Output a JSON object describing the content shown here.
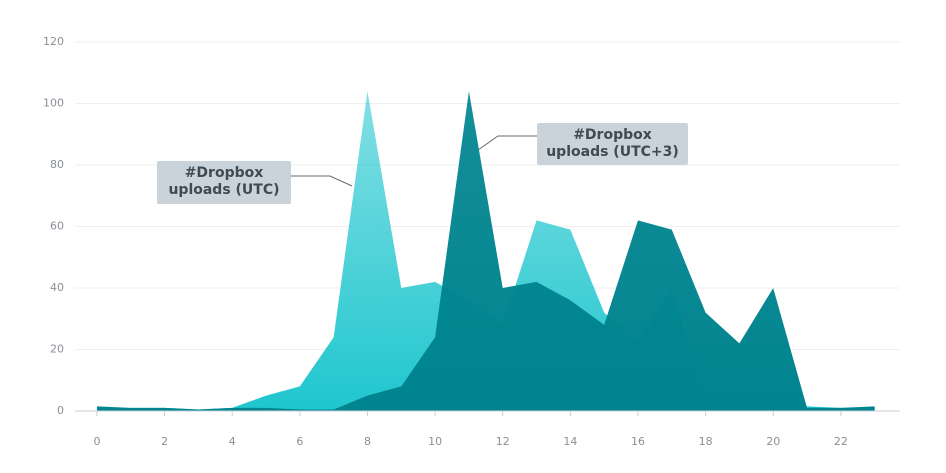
{
  "chart_data": {
    "type": "area",
    "x": [
      0,
      1,
      2,
      3,
      4,
      5,
      6,
      7,
      8,
      9,
      10,
      11,
      12,
      13,
      14,
      15,
      16,
      17,
      18,
      19,
      20,
      21,
      22,
      23
    ],
    "series": [
      {
        "name": "#Dropbox uploads (UTC)",
        "color": "#1fc6ce",
        "values": [
          1,
          1,
          1,
          0.5,
          1,
          5,
          8,
          24,
          104,
          40,
          42,
          36,
          28,
          62,
          59,
          32,
          22,
          40,
          1,
          1,
          1,
          1.5,
          1,
          1
        ]
      },
      {
        "name": "#Dropbox uploads (UTC+3)",
        "color": "#00848f",
        "values": [
          1.5,
          1,
          1,
          0.5,
          1,
          1,
          0.5,
          0.5,
          5,
          8,
          24,
          104,
          40,
          42,
          36,
          28,
          62,
          59,
          32,
          22,
          40,
          1,
          1,
          1.5
        ]
      }
    ],
    "xlim": [
      -0.65,
      23.75
    ],
    "xticks": [
      0,
      2,
      4,
      6,
      8,
      10,
      12,
      14,
      16,
      18,
      20,
      22
    ],
    "ylim": [
      0,
      120
    ],
    "yticks": [
      0,
      20,
      40,
      60,
      80,
      100,
      120
    ],
    "grid": true
  }
}
